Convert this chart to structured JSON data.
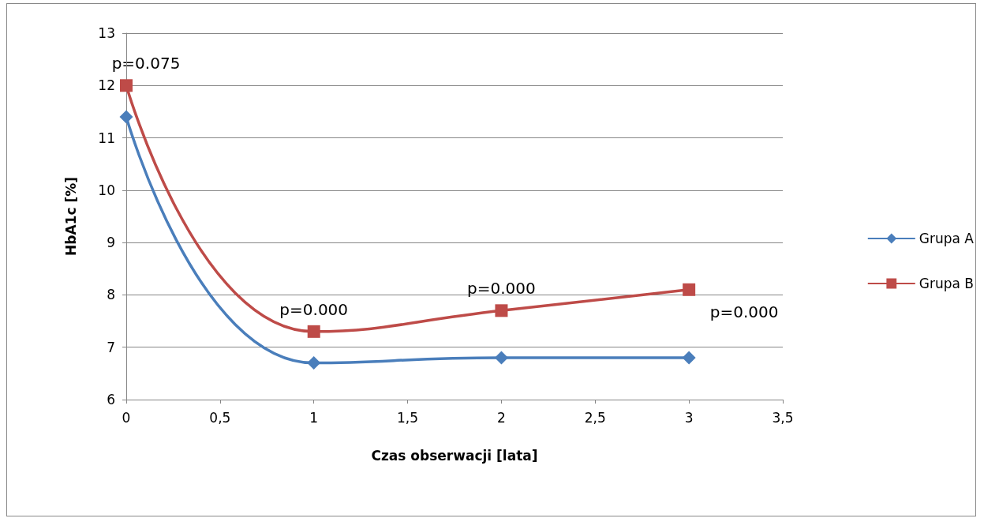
{
  "chart_data": {
    "type": "line",
    "xlabel": "Czas obserwacji [lata]",
    "ylabel": "HbA1c [%]",
    "x": [
      0,
      1,
      2,
      3
    ],
    "series": [
      {
        "name": "Grupa A",
        "color": "#4a7ebb",
        "marker": "diamond",
        "values": [
          11.4,
          6.7,
          6.8,
          6.8
        ]
      },
      {
        "name": "Grupa B",
        "color": "#be4b48",
        "marker": "square",
        "values": [
          12.0,
          7.3,
          7.7,
          8.1
        ]
      }
    ],
    "xlim": [
      0,
      3.5
    ],
    "xticks": [
      0,
      {
        "value": 0.5,
        "label": "0,5"
      },
      1,
      {
        "value": 1.5,
        "label": "1,5"
      },
      2,
      {
        "value": 2.5,
        "label": "2,5"
      },
      3,
      {
        "value": 3.5,
        "label": "3,5"
      }
    ],
    "ylim": [
      6,
      13
    ],
    "yticks": [
      6,
      7,
      8,
      9,
      10,
      11,
      12,
      13
    ],
    "grid": "y",
    "legend": "right",
    "annotations": [
      {
        "text": "p=0.075",
        "x": 0,
        "y": 12.0
      },
      {
        "text": "p=0.000",
        "x": 1,
        "y": 7.3
      },
      {
        "text": "p=0.000",
        "x": 2,
        "y": 7.7
      },
      {
        "text": "p=0.000",
        "x": 3,
        "y": 8.1
      }
    ]
  }
}
